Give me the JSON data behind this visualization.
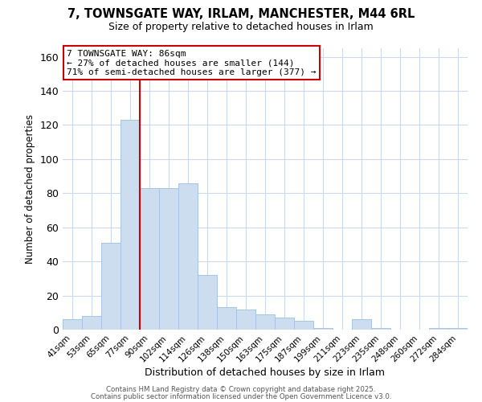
{
  "title1": "7, TOWNSGATE WAY, IRLAM, MANCHESTER, M44 6RL",
  "title2": "Size of property relative to detached houses in Irlam",
  "xlabel": "Distribution of detached houses by size in Irlam",
  "ylabel": "Number of detached properties",
  "footer1": "Contains HM Land Registry data © Crown copyright and database right 2025.",
  "footer2": "Contains public sector information licensed under the Open Government Licence v3.0.",
  "bar_labels": [
    "41sqm",
    "53sqm",
    "65sqm",
    "77sqm",
    "90sqm",
    "102sqm",
    "114sqm",
    "126sqm",
    "138sqm",
    "150sqm",
    "163sqm",
    "175sqm",
    "187sqm",
    "199sqm",
    "211sqm",
    "223sqm",
    "235sqm",
    "248sqm",
    "260sqm",
    "272sqm",
    "284sqm"
  ],
  "bar_values": [
    6,
    8,
    51,
    123,
    83,
    83,
    86,
    32,
    13,
    12,
    9,
    7,
    5,
    1,
    0,
    6,
    1,
    0,
    0,
    1,
    1
  ],
  "bar_color": "#ccddf0",
  "bar_edgecolor": "#a8c4e0",
  "vline_x_idx": 3,
  "vline_color": "#cc0000",
  "annotation_title": "7 TOWNSGATE WAY: 86sqm",
  "annotation_line1": "← 27% of detached houses are smaller (144)",
  "annotation_line2": "71% of semi-detached houses are larger (377) →",
  "annotation_box_edgecolor": "#cc0000",
  "ylim": [
    0,
    165
  ],
  "yticks": [
    0,
    20,
    40,
    60,
    80,
    100,
    120,
    140,
    160
  ],
  "background_color": "#ffffff",
  "grid_color": "#ccd8ec"
}
